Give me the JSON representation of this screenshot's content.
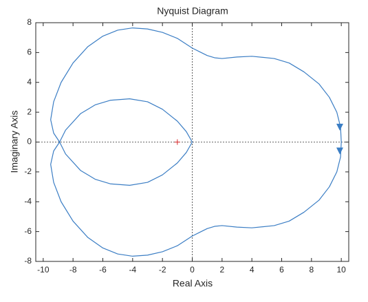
{
  "chart_data": {
    "type": "line",
    "title": "Nyquist Diagram",
    "xlabel": "Real Axis",
    "ylabel": "Imaginary Axis",
    "xlim": [
      -10.5,
      10.5
    ],
    "ylim": [
      -8,
      8
    ],
    "xticks": [
      -10,
      -8,
      -6,
      -4,
      -2,
      0,
      2,
      4,
      6,
      8,
      10
    ],
    "yticks": [
      -8,
      -6,
      -4,
      -2,
      0,
      2,
      4,
      6,
      8
    ],
    "series": [
      {
        "color": "#3a7dc4",
        "x": [
          10,
          9.95,
          9.7,
          9.2,
          8.5,
          7.5,
          6.5,
          5.5,
          4,
          3,
          2,
          1.5,
          1,
          0.5,
          0,
          -1,
          -2,
          -3,
          -4,
          -5,
          -6,
          -7,
          -8,
          -8.8,
          -9.3,
          -9.5,
          -9.3,
          -8.9,
          -8.5,
          -7.5,
          -6.5,
          -5.5,
          -4.2,
          -3,
          -2,
          -1,
          -0.4,
          0,
          -0.4,
          -1,
          -2,
          -3,
          -4.2,
          -5.5,
          -6.5,
          -7.5,
          -8.5,
          -8.9,
          -9.3,
          -9.5,
          -9.3,
          -8.8,
          -8,
          -7,
          -6,
          -5,
          -4,
          -3,
          -2,
          -1,
          0,
          0.5,
          1,
          1.5,
          2,
          3,
          4,
          5.5,
          6.5,
          7.5,
          8.5,
          9.2,
          9.7,
          9.95,
          10
        ],
        "y": [
          0,
          1,
          2,
          3,
          3.9,
          4.7,
          5.3,
          5.6,
          5.75,
          5.7,
          5.6,
          5.65,
          5.8,
          6.05,
          6.3,
          6.95,
          7.35,
          7.58,
          7.65,
          7.5,
          7.1,
          6.4,
          5.3,
          4,
          2.7,
          1.5,
          0.6,
          0,
          -0.8,
          -1.9,
          -2.5,
          -2.8,
          -2.9,
          -2.7,
          -2.2,
          -1.4,
          -0.7,
          0,
          0.7,
          1.4,
          2.2,
          2.7,
          2.9,
          2.8,
          2.5,
          1.9,
          0.8,
          0,
          -0.6,
          -1.5,
          -2.7,
          -4,
          -5.3,
          -6.4,
          -7.1,
          -7.5,
          -7.65,
          -7.58,
          -7.35,
          -6.95,
          -6.3,
          -6.05,
          -5.8,
          -5.65,
          -5.6,
          -5.7,
          -5.75,
          -5.6,
          -5.3,
          -4.7,
          -3.9,
          -3,
          -2,
          -1,
          0
        ]
      }
    ],
    "arrows": [
      {
        "x": 9.9,
        "y": 1
      },
      {
        "x": 9.9,
        "y": -0.6
      }
    ],
    "critical_point": {
      "x": -1,
      "y": 0,
      "color": "#d62728"
    }
  }
}
